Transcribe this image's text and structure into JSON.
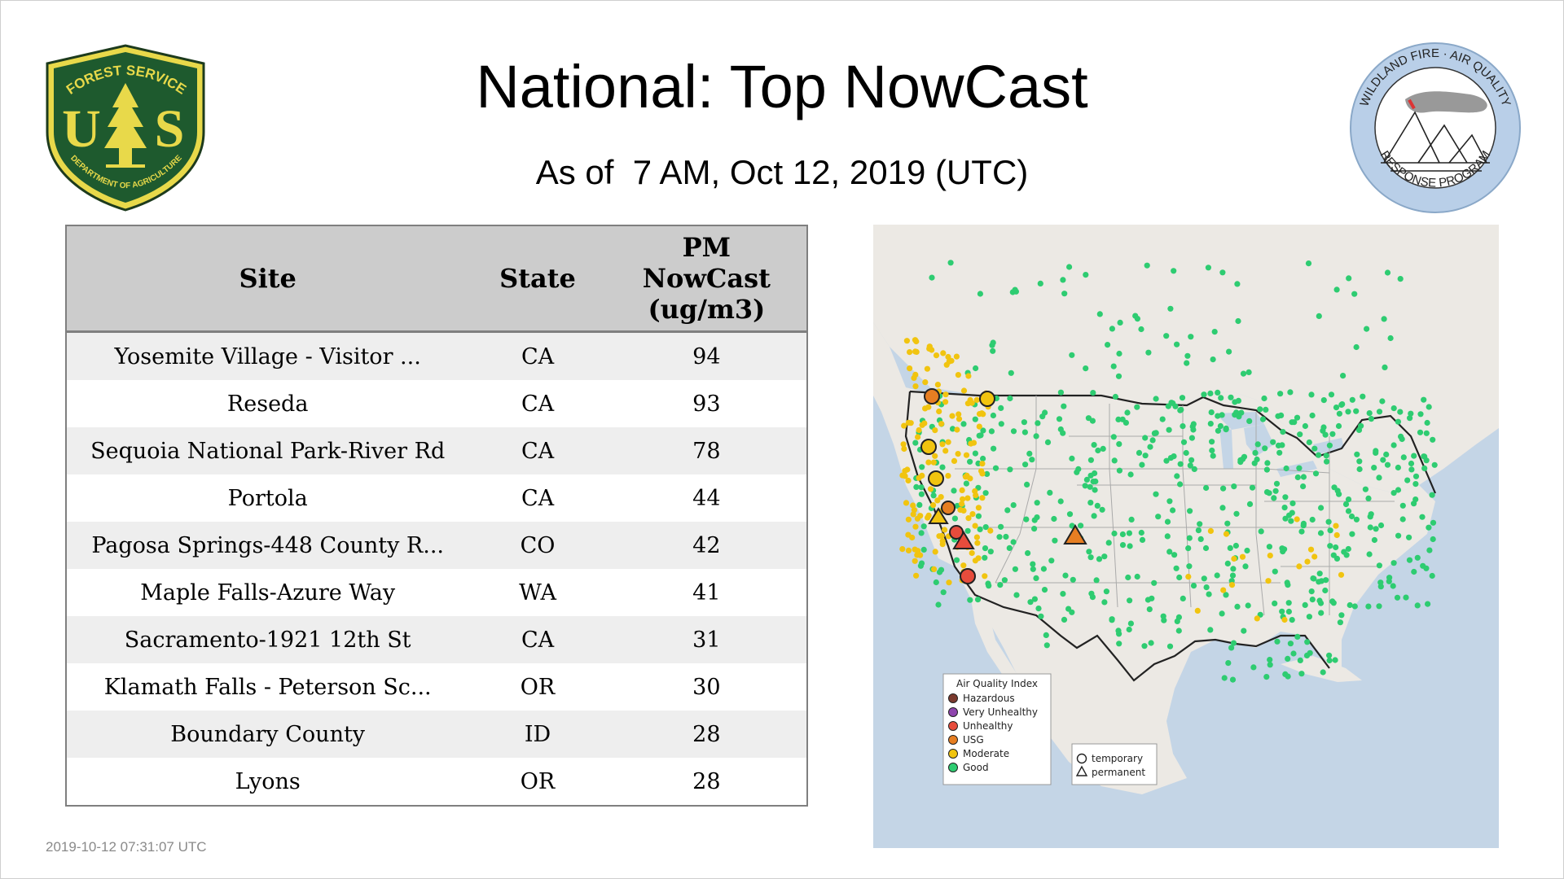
{
  "header": {
    "title": "National: Top NowCast",
    "subtitle": "As of  7 AM, Oct 12, 2019 (UTC)"
  },
  "logos": {
    "forest_service": {
      "top_text": "FOREST SERVICE",
      "letters_left": "U",
      "letters_right": "S",
      "bottom_text": "DEPARTMENT OF AGRICULTURE"
    },
    "wildland_fire": {
      "top_text": "WILDLAND FIRE · AIR QUALITY",
      "bottom_text": "RESPONSE PROGRAM"
    }
  },
  "table": {
    "headers": {
      "site": "Site",
      "state": "State",
      "pm_line1": "PM",
      "pm_line2": "NowCast",
      "pm_line3": "(ug/m3)"
    },
    "rows": [
      {
        "site": "Yosemite Village - Visitor ...",
        "state": "CA",
        "value": "94"
      },
      {
        "site": "Reseda",
        "state": "CA",
        "value": "93"
      },
      {
        "site": "Sequoia National Park-River Rd",
        "state": "CA",
        "value": "78"
      },
      {
        "site": "Portola",
        "state": "CA",
        "value": "44"
      },
      {
        "site": "Pagosa Springs-448 County R...",
        "state": "CO",
        "value": "42"
      },
      {
        "site": "Maple Falls-Azure Way",
        "state": "WA",
        "value": "41"
      },
      {
        "site": "Sacramento-1921 12th St",
        "state": "CA",
        "value": "31"
      },
      {
        "site": "Klamath Falls - Peterson Sc...",
        "state": "OR",
        "value": "30"
      },
      {
        "site": "Boundary County",
        "state": "ID",
        "value": "28"
      },
      {
        "site": "Lyons",
        "state": "OR",
        "value": "28"
      }
    ]
  },
  "map": {
    "legend": {
      "title": "Air Quality Index",
      "items": [
        {
          "label": "Hazardous",
          "color": "#7b3a2e"
        },
        {
          "label": "Very Unhealthy",
          "color": "#8e44ad"
        },
        {
          "label": "Unhealthy",
          "color": "#e74c3c"
        },
        {
          "label": "USG",
          "color": "#e67e22"
        },
        {
          "label": "Moderate",
          "color": "#f1c40f"
        },
        {
          "label": "Good",
          "color": "#2ecc71"
        }
      ]
    },
    "marker_legend": {
      "temporary": "temporary",
      "permanent": "permanent"
    },
    "colors": {
      "water": "#c4d5e6",
      "land": "#ece9e4",
      "good": "#2ecc71",
      "moderate": "#f1c40f",
      "usg": "#e67e22",
      "unhealthy": "#e74c3c",
      "border": "#222222"
    }
  },
  "footer": {
    "timestamp": "2019-10-12 07:31:07 UTC"
  }
}
